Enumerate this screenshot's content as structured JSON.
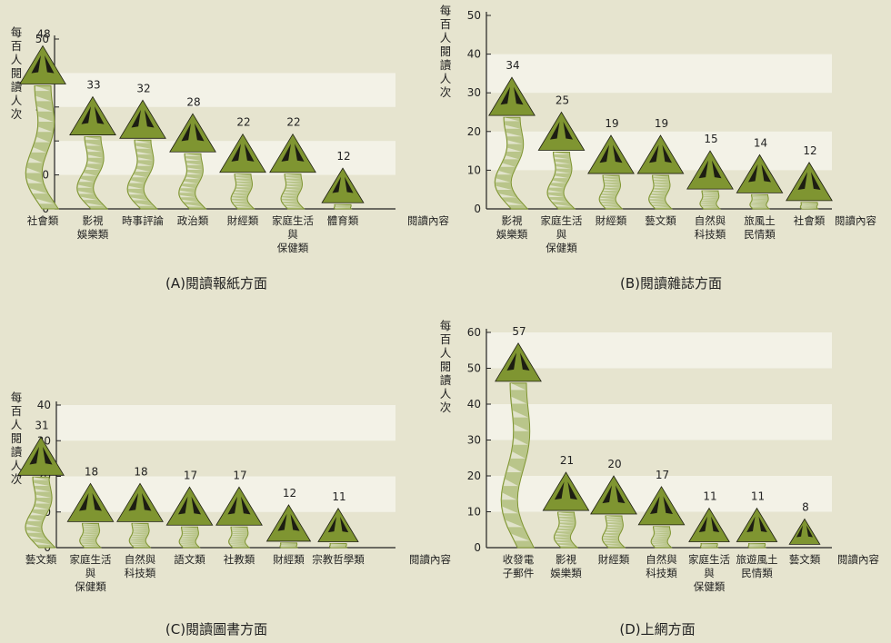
{
  "chart_data": [
    {
      "type": "bar",
      "title": "(A)閱讀報紙方面",
      "ylabel": "每百人閱讀人次",
      "xlabel": "閱讀內容",
      "ylim": [
        0,
        50
      ],
      "yticks": [
        0,
        10,
        20,
        30,
        40,
        50
      ],
      "categories": [
        "社會類",
        "影視\n娛樂類",
        "時事評論",
        "政治類",
        "財經類",
        "家庭生活\n與\n保健類",
        "體育類"
      ],
      "values": [
        48,
        33,
        32,
        28,
        22,
        22,
        12
      ]
    },
    {
      "type": "bar",
      "title": "(B)閱讀雜誌方面",
      "ylabel": "每百人閱讀人次",
      "xlabel": "閱讀內容",
      "ylim": [
        0,
        50
      ],
      "yticks": [
        0,
        10,
        20,
        30,
        40,
        50
      ],
      "categories": [
        "影視\n娛樂類",
        "家庭生活\n與\n保健類",
        "財經類",
        "藝文類",
        "自然與\n科技類",
        "旅風土\n民情類",
        "社會類"
      ],
      "values": [
        34,
        25,
        19,
        19,
        15,
        14,
        12
      ]
    },
    {
      "type": "bar",
      "title": "(C)閱讀圖書方面",
      "ylabel": "每百人閱讀人次",
      "xlabel": "閱讀內容",
      "ylim": [
        0,
        40
      ],
      "yticks": [
        0,
        10,
        20,
        30,
        40
      ],
      "categories": [
        "藝文類",
        "家庭生活\n與\n保健類",
        "自然與\n科技類",
        "語文類",
        "社教類",
        "財經類",
        "宗教哲學類"
      ],
      "values": [
        31,
        18,
        18,
        17,
        17,
        12,
        11
      ]
    },
    {
      "type": "bar",
      "title": "(D)上網方面",
      "ylabel": "每百人閱讀人次",
      "xlabel": "閱讀內容",
      "ylim": [
        0,
        60
      ],
      "yticks": [
        0,
        10,
        20,
        30,
        40,
        50,
        60
      ],
      "categories": [
        "收發電\n子郵件",
        "影視\n娛樂類",
        "財經類",
        "自然與\n科技類",
        "家庭生活\n與\n保健類",
        "旅遊風土\n民情類",
        "藝文類"
      ],
      "values": [
        57,
        21,
        20,
        17,
        11,
        11,
        8
      ]
    }
  ],
  "colors": {
    "background": "#e6e4cf",
    "band": "#f3f2e7",
    "cap": "#7f9531",
    "cap_dark": "#1d1d12",
    "stem_light": "#e8e7d6",
    "stem_mid": "#b9c58a",
    "stem_dark": "#7f9531"
  }
}
